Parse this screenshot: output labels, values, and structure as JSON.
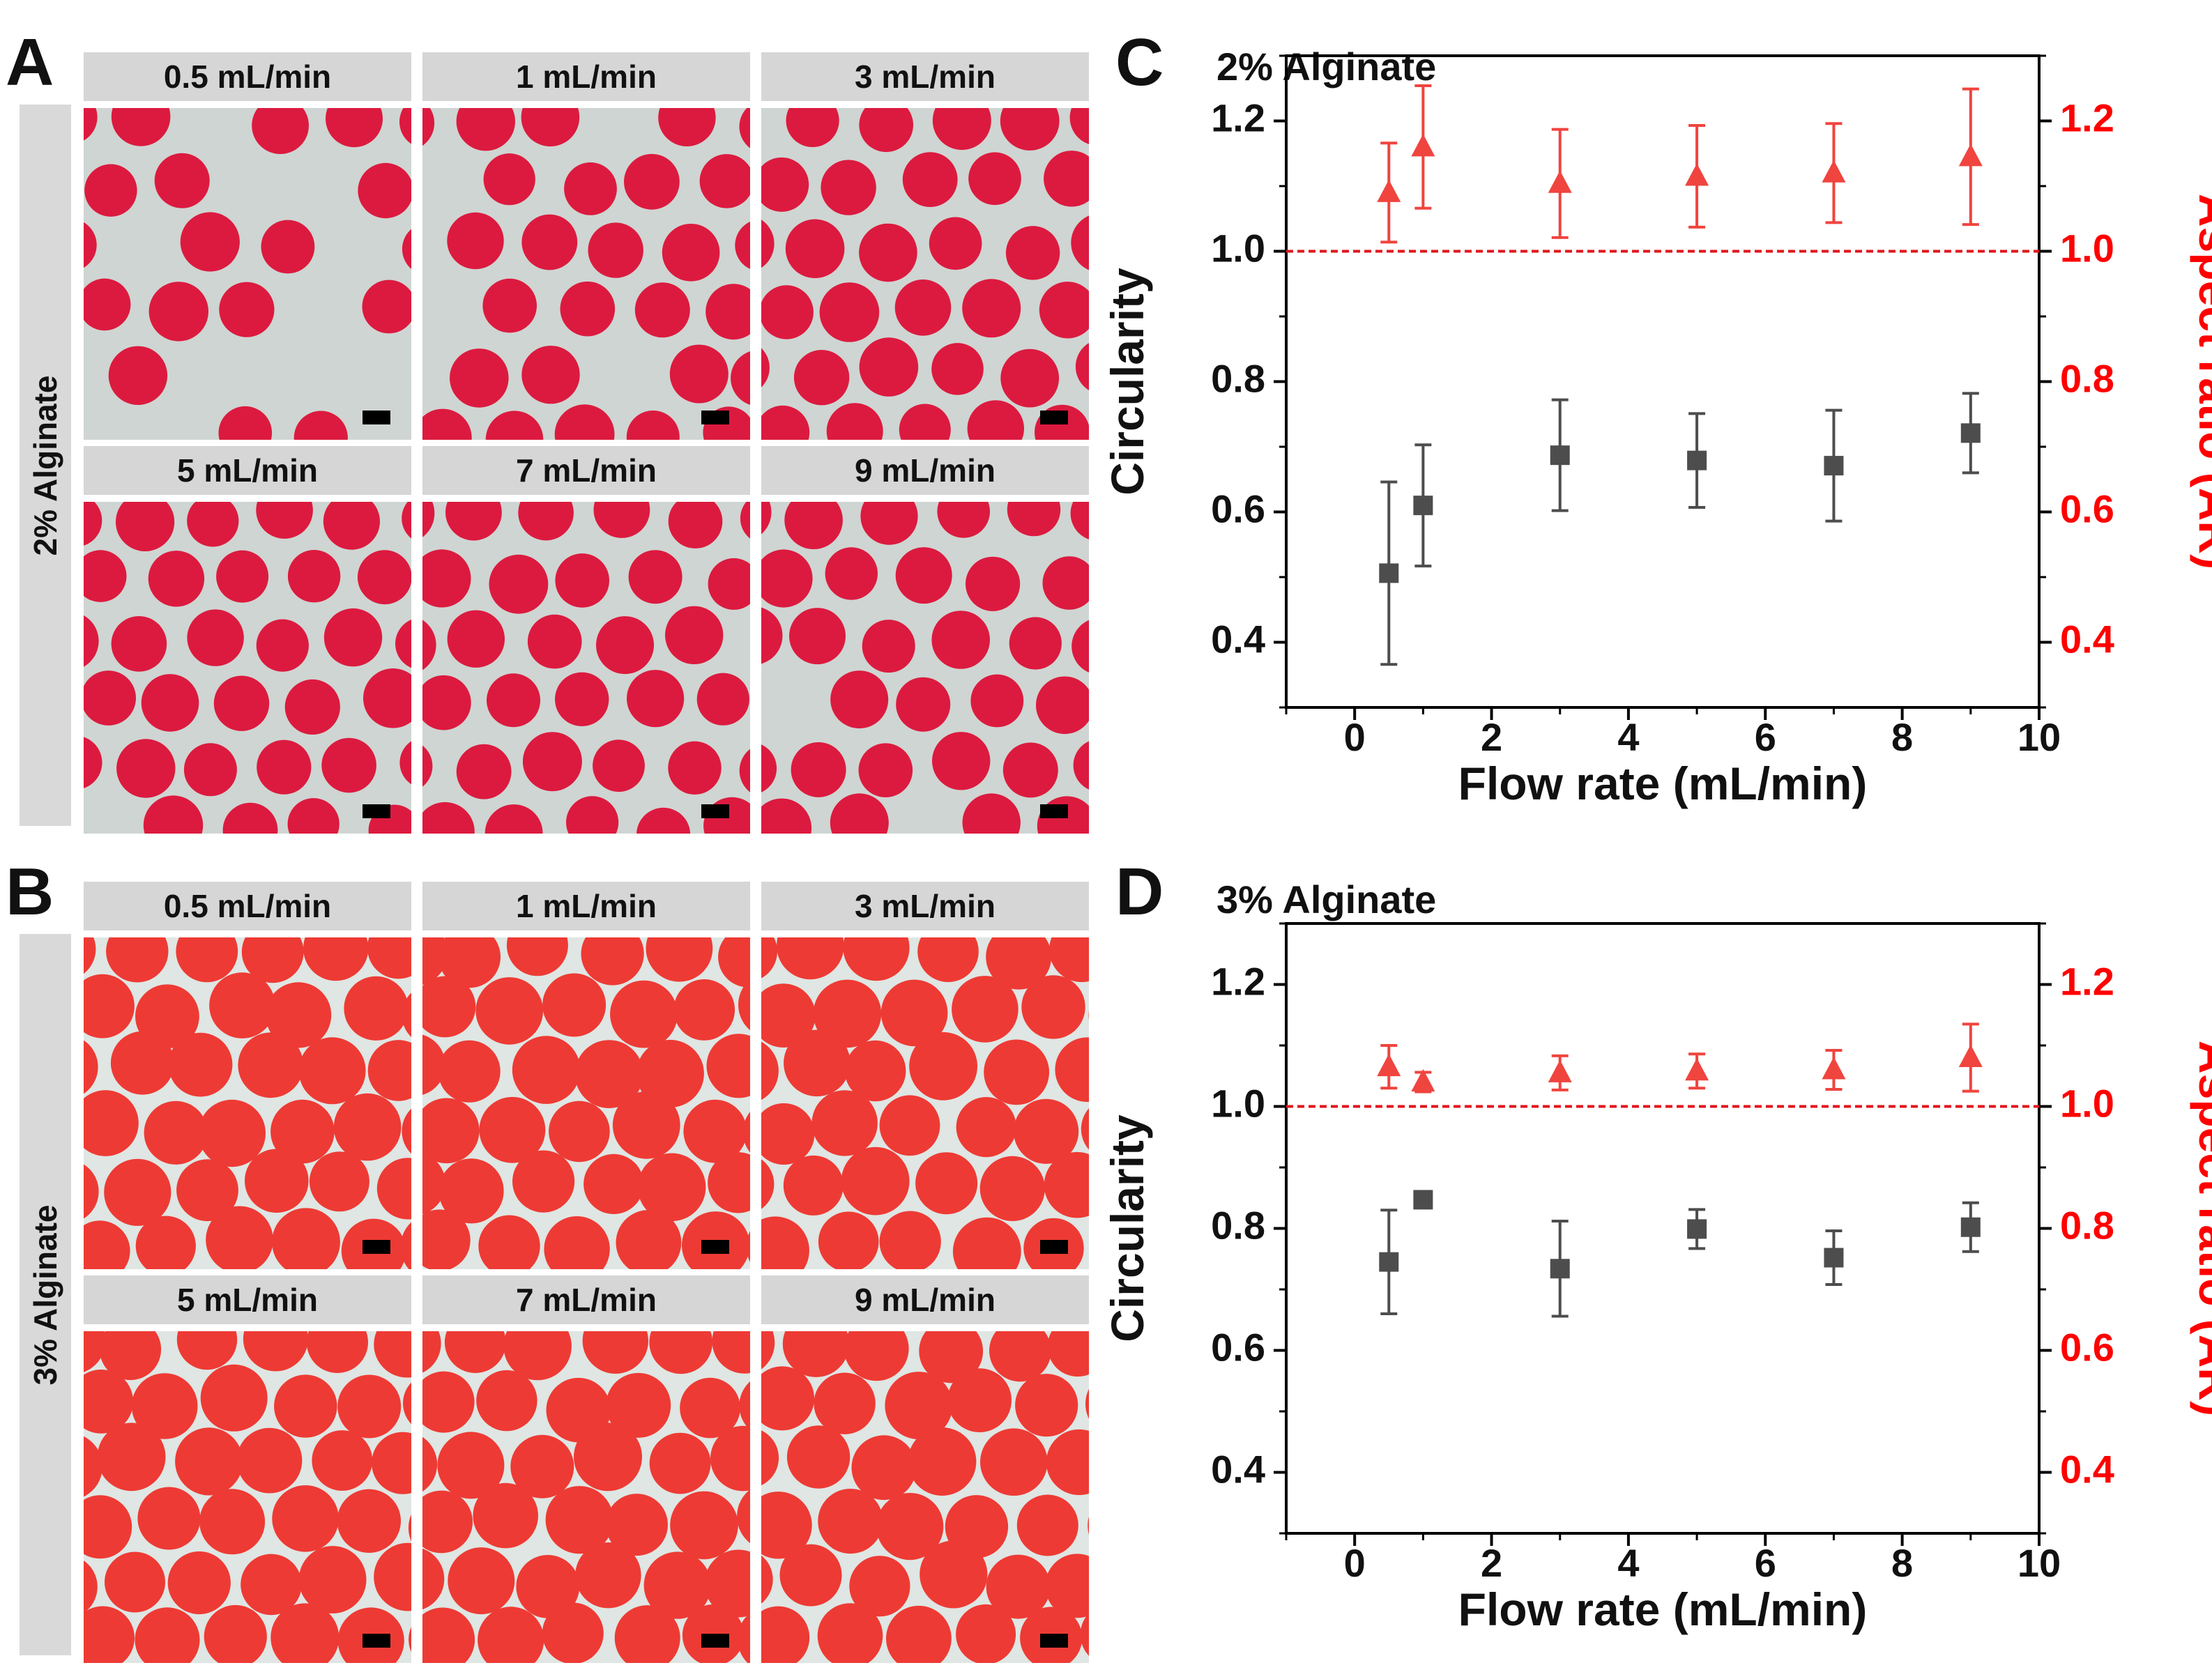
{
  "panels": {
    "A": {
      "letter": "A",
      "side_label": "2% Alginate",
      "rates": [
        "0.5 mL/min",
        "1 mL/min",
        "3 mL/min",
        "5 mL/min",
        "7 mL/min",
        "9 mL/min"
      ],
      "bead_color": "#dc1a3f",
      "bg_color": "#cfd5d2"
    },
    "B": {
      "letter": "B",
      "side_label": "3% Alginate",
      "rates": [
        "0.5 mL/min",
        "1 mL/min",
        "3 mL/min",
        "5 mL/min",
        "7 mL/min",
        "9 mL/min"
      ],
      "bead_color": "#ee3a34",
      "bg_color": "#dfe6e3"
    },
    "C": {
      "letter": "C"
    },
    "D": {
      "letter": "D"
    }
  },
  "chart_data": [
    {
      "type": "scatter",
      "title": "2% Alginate",
      "xlabel": "Flow rate (mL/min)",
      "ylabel": "Circularity",
      "y2label": "Aspect ratio (AR)",
      "xlim": [
        -1,
        10
      ],
      "ylim": [
        0.3,
        1.3
      ],
      "xticks": [
        0,
        2,
        4,
        6,
        8,
        10
      ],
      "yticks": [
        0.4,
        0.6,
        0.8,
        1.0,
        1.2
      ],
      "xtick_labels": [
        "0",
        "2",
        "4",
        "6",
        "8",
        "10"
      ],
      "ytick_labels": [
        "0.4",
        "0.6",
        "0.8",
        "1.0",
        "1.2"
      ],
      "reference_line": 1.0,
      "colors": {
        "circularity": "#4d4d4d",
        "aspect_ratio": "#f0443f",
        "axis2": "#ff0000"
      },
      "series": [
        {
          "name": "Circularity",
          "marker": "square",
          "axis": "left",
          "x": [
            0.5,
            1,
            3,
            5,
            7,
            9
          ],
          "y": [
            0.506,
            0.61,
            0.687,
            0.679,
            0.671,
            0.721
          ],
          "err": [
            0.14,
            0.093,
            0.085,
            0.072,
            0.085,
            0.061
          ]
        },
        {
          "name": "Aspect ratio (AR)",
          "marker": "triangle",
          "axis": "right",
          "x": [
            0.5,
            1,
            3,
            5,
            7,
            9
          ],
          "y": [
            1.09,
            1.16,
            1.104,
            1.115,
            1.12,
            1.145
          ],
          "err": [
            0.076,
            0.094,
            0.083,
            0.078,
            0.076,
            0.104
          ]
        }
      ]
    },
    {
      "type": "scatter",
      "title": "3% Alginate",
      "xlabel": "Flow rate (mL/min)",
      "ylabel": "Circularity",
      "y2label": "Aspect ratio (AR)",
      "xlim": [
        -1,
        10
      ],
      "ylim": [
        0.3,
        1.3
      ],
      "xticks": [
        0,
        2,
        4,
        6,
        8,
        10
      ],
      "yticks": [
        0.4,
        0.6,
        0.8,
        1.0,
        1.2
      ],
      "xtick_labels": [
        "0",
        "2",
        "4",
        "6",
        "8",
        "10"
      ],
      "ytick_labels": [
        "0.4",
        "0.6",
        "0.8",
        "1.0",
        "1.2"
      ],
      "reference_line": 1.0,
      "colors": {
        "circularity": "#4d4d4d",
        "aspect_ratio": "#f0443f",
        "axis2": "#ff0000"
      },
      "series": [
        {
          "name": "Circularity",
          "marker": "square",
          "axis": "left",
          "x": [
            0.5,
            1,
            3,
            5,
            7,
            9
          ],
          "y": [
            0.745,
            0.847,
            0.734,
            0.799,
            0.752,
            0.802
          ],
          "err": [
            0.085,
            0.01,
            0.078,
            0.032,
            0.044,
            0.04
          ]
        },
        {
          "name": "Aspect ratio (AR)",
          "marker": "triangle",
          "axis": "right",
          "x": [
            0.5,
            1,
            3,
            5,
            7,
            9
          ],
          "y": [
            1.065,
            1.04,
            1.055,
            1.058,
            1.06,
            1.08
          ],
          "err": [
            0.035,
            0.016,
            0.028,
            0.028,
            0.032,
            0.055
          ]
        }
      ]
    }
  ]
}
